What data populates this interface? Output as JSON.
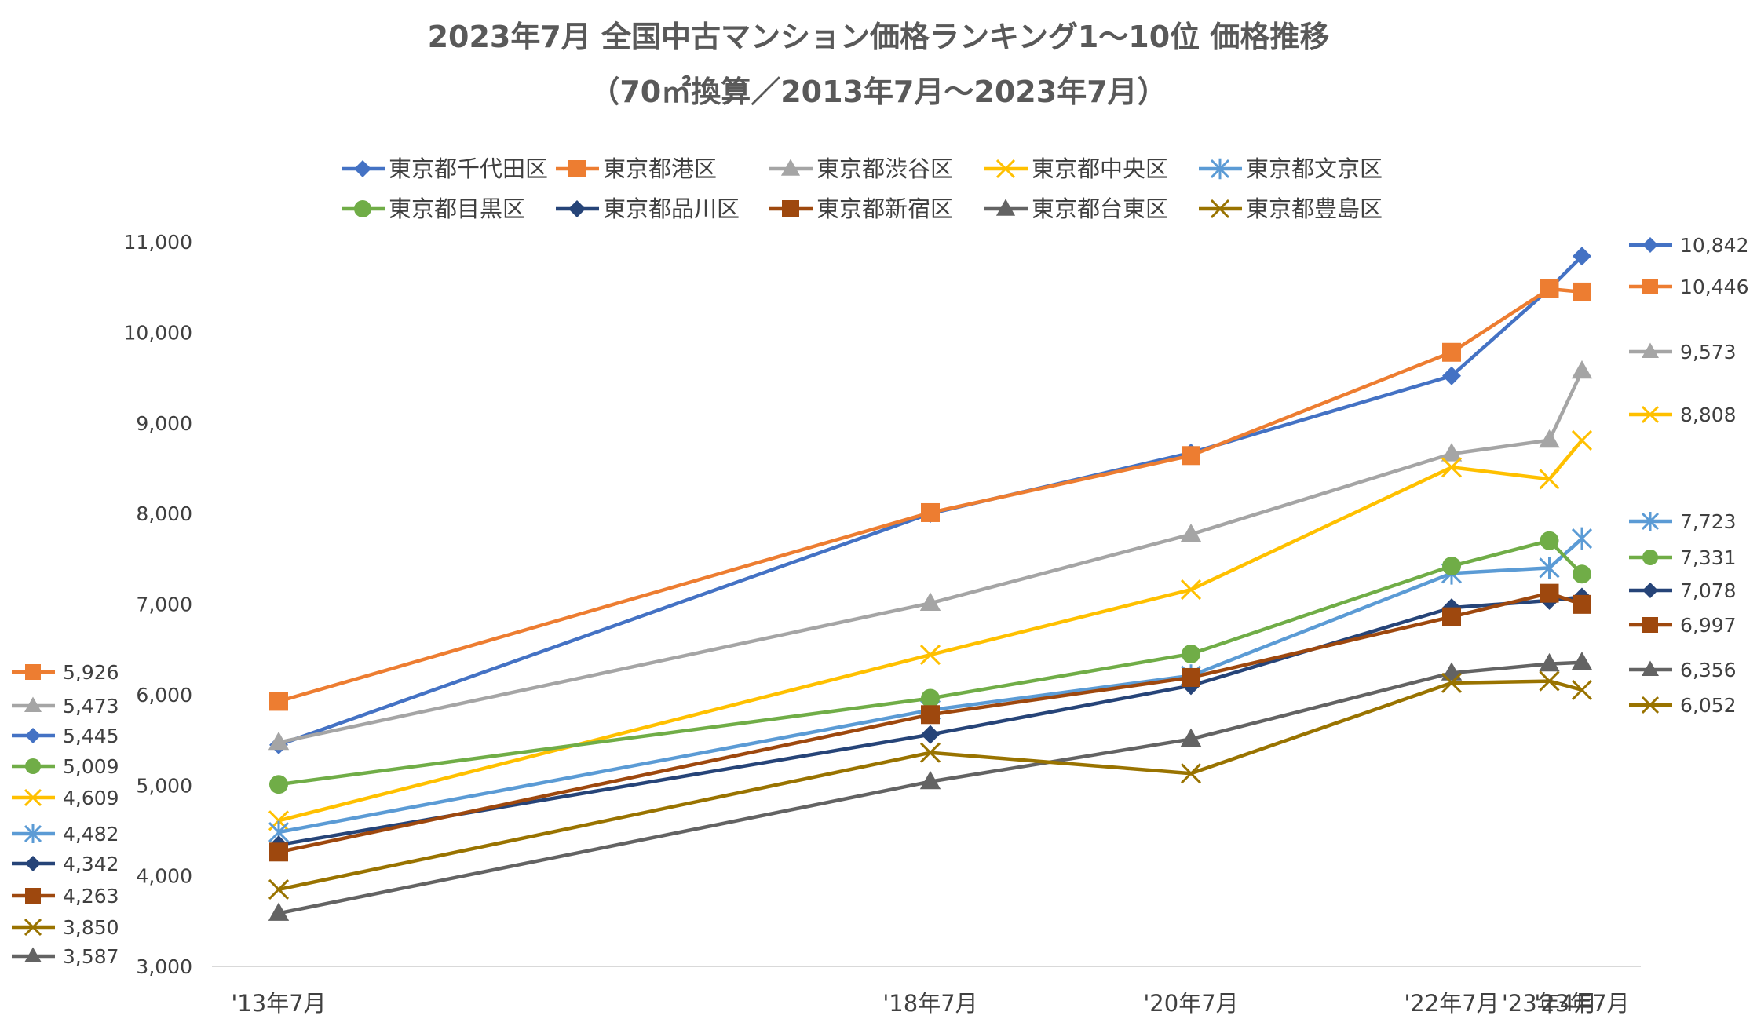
{
  "chart_data": {
    "type": "line",
    "title": "2023年7月 全国中古マンション価格ランキング1～10位 価格推移",
    "subtitle": "（70㎡換算／2013年7月～2023年7月）",
    "x": [
      "'13年7月",
      "'18年7月",
      "'20年7月",
      "'22年7月",
      "'23年4月",
      "'23年7月"
    ],
    "x_positions": [
      2013.5,
      2018.5,
      2020.5,
      2022.5,
      2023.25,
      2023.5
    ],
    "ylim": [
      3000,
      11000
    ],
    "yticks": [
      "3,000",
      "4,000",
      "5,000",
      "6,000",
      "7,000",
      "8,000",
      "9,000",
      "10,000",
      "11,000"
    ],
    "legend_position": "top",
    "series": [
      {
        "name": "東京都千代田区",
        "color": "#4472C4",
        "marker": "diamond",
        "values": [
          5445,
          8000,
          8670,
          9520,
          10480,
          10842
        ],
        "start_label": "5,445",
        "end_label": "10,842"
      },
      {
        "name": "東京都港区",
        "color": "#ED7D31",
        "marker": "square",
        "values": [
          5926,
          8010,
          8640,
          9780,
          10480,
          10446
        ],
        "start_label": "5,926",
        "end_label": "10,446"
      },
      {
        "name": "東京都渋谷区",
        "color": "#A5A5A5",
        "marker": "triangle",
        "values": [
          5473,
          7010,
          7770,
          8660,
          8810,
          9573
        ],
        "start_label": "5,473",
        "end_label": "9,573"
      },
      {
        "name": "東京都中央区",
        "color": "#FFC000",
        "marker": "x",
        "values": [
          4609,
          6440,
          7160,
          8510,
          8380,
          8808
        ],
        "start_label": "4,609",
        "end_label": "8,808"
      },
      {
        "name": "東京都文京区",
        "color": "#5B9BD5",
        "marker": "star",
        "values": [
          4482,
          5830,
          6210,
          7340,
          7400,
          7723
        ],
        "start_label": "4,482",
        "end_label": "7,723"
      },
      {
        "name": "東京都目黒区",
        "color": "#70AD47",
        "marker": "circle",
        "values": [
          5009,
          5960,
          6450,
          7420,
          7700,
          7331
        ],
        "start_label": "5,009",
        "end_label": "7,331"
      },
      {
        "name": "東京都品川区",
        "color": "#264478",
        "marker": "diamond",
        "values": [
          4342,
          5560,
          6100,
          6960,
          7040,
          7078
        ],
        "start_label": "4,342",
        "end_label": "7,078"
      },
      {
        "name": "東京都新宿区",
        "color": "#9E480E",
        "marker": "square",
        "values": [
          4263,
          5780,
          6190,
          6860,
          7120,
          6997
        ],
        "start_label": "4,263",
        "end_label": "6,997"
      },
      {
        "name": "東京都台東区",
        "color": "#636363",
        "marker": "triangle",
        "values": [
          3587,
          5040,
          5510,
          6240,
          6340,
          6356
        ],
        "start_label": "3,587",
        "end_label": "6,356"
      },
      {
        "name": "東京都豊島区",
        "color": "#997300",
        "marker": "x",
        "values": [
          3850,
          5360,
          5130,
          6130,
          6150,
          6052
        ],
        "start_label": "3,850",
        "end_label": "6,052"
      }
    ],
    "left_label_order": [
      "東京都港区",
      "東京都渋谷区",
      "東京都千代田区",
      "東京都目黒区",
      "東京都中央区",
      "東京都文京区",
      "東京都品川区",
      "東京都新宿区",
      "東京都豊島区",
      "東京都台東区"
    ],
    "right_label_order": [
      "東京都千代田区",
      "東京都港区",
      "東京都渋谷区",
      "東京都中央区",
      "東京都文京区",
      "東京都目黒区",
      "東京都品川区",
      "東京都新宿区",
      "東京都台東区",
      "東京都豊島区"
    ]
  }
}
